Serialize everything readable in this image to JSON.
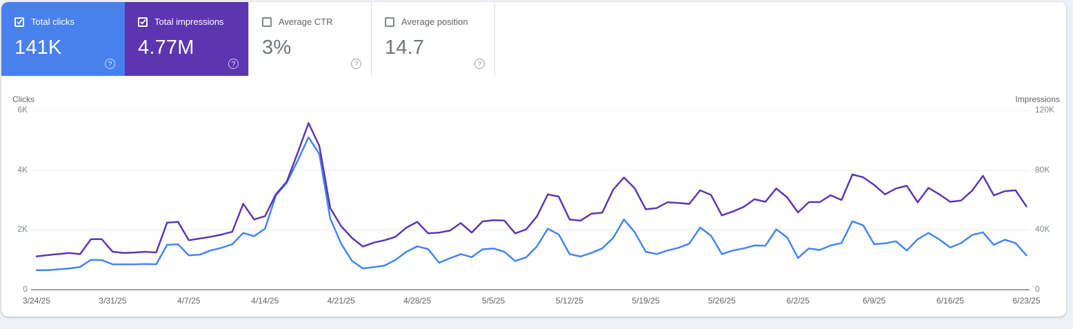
{
  "icons": {
    "help_glyph": "?"
  },
  "metrics": [
    {
      "label": "Total clicks",
      "value": "141K",
      "checked": true,
      "bg": "#4880ee"
    },
    {
      "label": "Total impressions",
      "value": "4.77M",
      "checked": true,
      "bg": "#5c35b0"
    },
    {
      "label": "Average CTR",
      "value": "3%",
      "checked": false,
      "bg": "#ffffff"
    },
    {
      "label": "Average position",
      "value": "14.7",
      "checked": false,
      "bg": "#ffffff"
    }
  ],
  "chart_data": {
    "type": "line",
    "frequency": "daily",
    "date_range": {
      "start": "3/24/25",
      "end": "6/23/25"
    },
    "x_week_labels": [
      "3/24/25",
      "3/31/25",
      "4/7/25",
      "4/14/25",
      "4/21/25",
      "4/28/25",
      "5/5/25",
      "5/12/25",
      "5/19/25",
      "5/26/25",
      "6/2/25",
      "6/9/25",
      "6/16/25",
      "6/23/25"
    ],
    "left_axis": {
      "title": "Clicks",
      "ticks": [
        "6K",
        "4K",
        "2K",
        "0"
      ],
      "range": [
        0,
        6000
      ]
    },
    "right_axis": {
      "title": "Impressions",
      "ticks": [
        "120K",
        "80K",
        "40K",
        "0"
      ],
      "range": [
        0,
        120000
      ]
    },
    "gridlines": "horizontal",
    "legend": "none",
    "series": [
      {
        "name": "Clicks",
        "axis": "left",
        "color": "#4285f4",
        "values": [
          650,
          650,
          680,
          710,
          760,
          1000,
          990,
          850,
          846,
          846,
          860,
          846,
          1500,
          1520,
          1150,
          1170,
          1310,
          1400,
          1520,
          1900,
          1790,
          2040,
          3150,
          3580,
          4310,
          5100,
          4540,
          2380,
          1540,
          960,
          710,
          754,
          808,
          1000,
          1270,
          1450,
          1360,
          900,
          1050,
          1190,
          1090,
          1350,
          1380,
          1270,
          960,
          1080,
          1450,
          2040,
          1850,
          1190,
          1110,
          1230,
          1380,
          1730,
          2350,
          1920,
          1270,
          1190,
          1310,
          1400,
          1540,
          2080,
          1810,
          1190,
          1310,
          1380,
          1480,
          1470,
          2020,
          1750,
          1060,
          1380,
          1330,
          1480,
          1560,
          2290,
          2150,
          1520,
          1550,
          1620,
          1310,
          1690,
          1900,
          1680,
          1410,
          1560,
          1830,
          1920,
          1500,
          1670,
          1560,
          1150
        ]
      },
      {
        "name": "Impressions",
        "axis": "right",
        "color": "#5e35b1",
        "values": [
          22300,
          23100,
          23800,
          24600,
          23800,
          33800,
          33800,
          25400,
          24600,
          24900,
          25400,
          24900,
          44900,
          45400,
          33100,
          34200,
          35400,
          36900,
          38800,
          57500,
          47000,
          49200,
          63800,
          72300,
          91500,
          111500,
          96200,
          54600,
          42500,
          34600,
          28900,
          31500,
          33100,
          35400,
          41500,
          45400,
          37700,
          38200,
          39500,
          44600,
          38200,
          45700,
          46500,
          46300,
          37700,
          40300,
          49000,
          63800,
          62300,
          47000,
          46200,
          50800,
          51500,
          66900,
          75100,
          67700,
          53800,
          54600,
          58500,
          58000,
          57400,
          66500,
          63400,
          49700,
          52300,
          55400,
          60500,
          58800,
          67700,
          61800,
          51700,
          58600,
          58600,
          63200,
          60000,
          77100,
          75200,
          70100,
          63800,
          67700,
          69500,
          58500,
          68100,
          63800,
          58800,
          59700,
          66200,
          76200,
          63100,
          65900,
          66500,
          55700
        ]
      }
    ]
  }
}
